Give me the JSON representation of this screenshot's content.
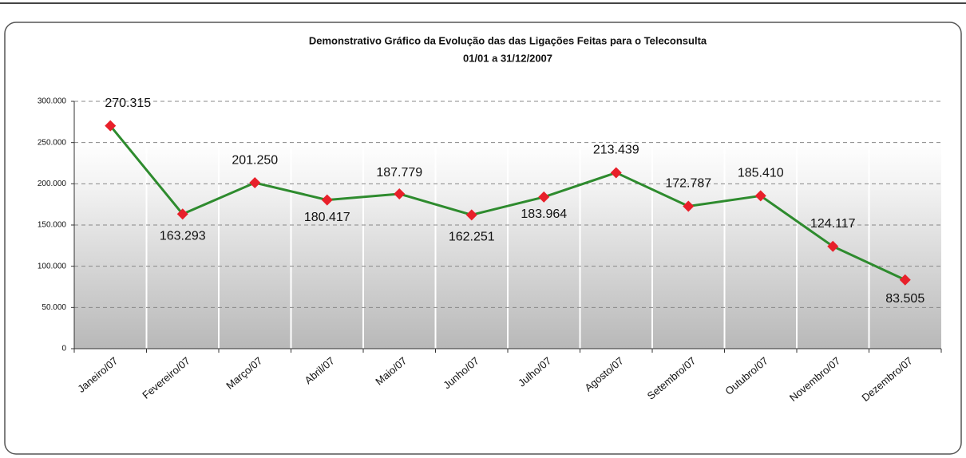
{
  "chart_data": {
    "type": "line",
    "title": "Demonstrativo Gráfico da Evolução das das Ligações Feitas para o Teleconsulta",
    "subtitle": "01/01 a 31/12/2007",
    "categories": [
      "Janeiro/07",
      "Fevereiro/07",
      "Março/07",
      "Abril/07",
      "Maio/07",
      "Junho/07",
      "Julho/07",
      "Agosto/07",
      "Setembro/07",
      "Outubro/07",
      "Novembro/07",
      "Dezembro/07"
    ],
    "values": [
      270315,
      163293,
      201250,
      180417,
      187779,
      162251,
      183964,
      213439,
      172787,
      185410,
      124117,
      83505
    ],
    "value_labels": [
      "270.315",
      "163.293",
      "201.250",
      "180.417",
      "187.779",
      "162.251",
      "183.964",
      "213.439",
      "172.787",
      "185.410",
      "124.117",
      "83.505"
    ],
    "color": "#2e8b2e",
    "marker_color": "#e8202a",
    "ylim": [
      0,
      300000
    ],
    "yticks": [
      0,
      {
        "value": 50000,
        "label": "50.000"
      },
      {
        "value": 100000,
        "label": "100.000"
      },
      {
        "value": 150000,
        "label": "150.000"
      },
      {
        "value": 200000,
        "label": "200.000"
      },
      {
        "value": 250000,
        "label": "250.000"
      },
      {
        "value": 300000,
        "label": "300.000"
      }
    ],
    "grid": true
  }
}
